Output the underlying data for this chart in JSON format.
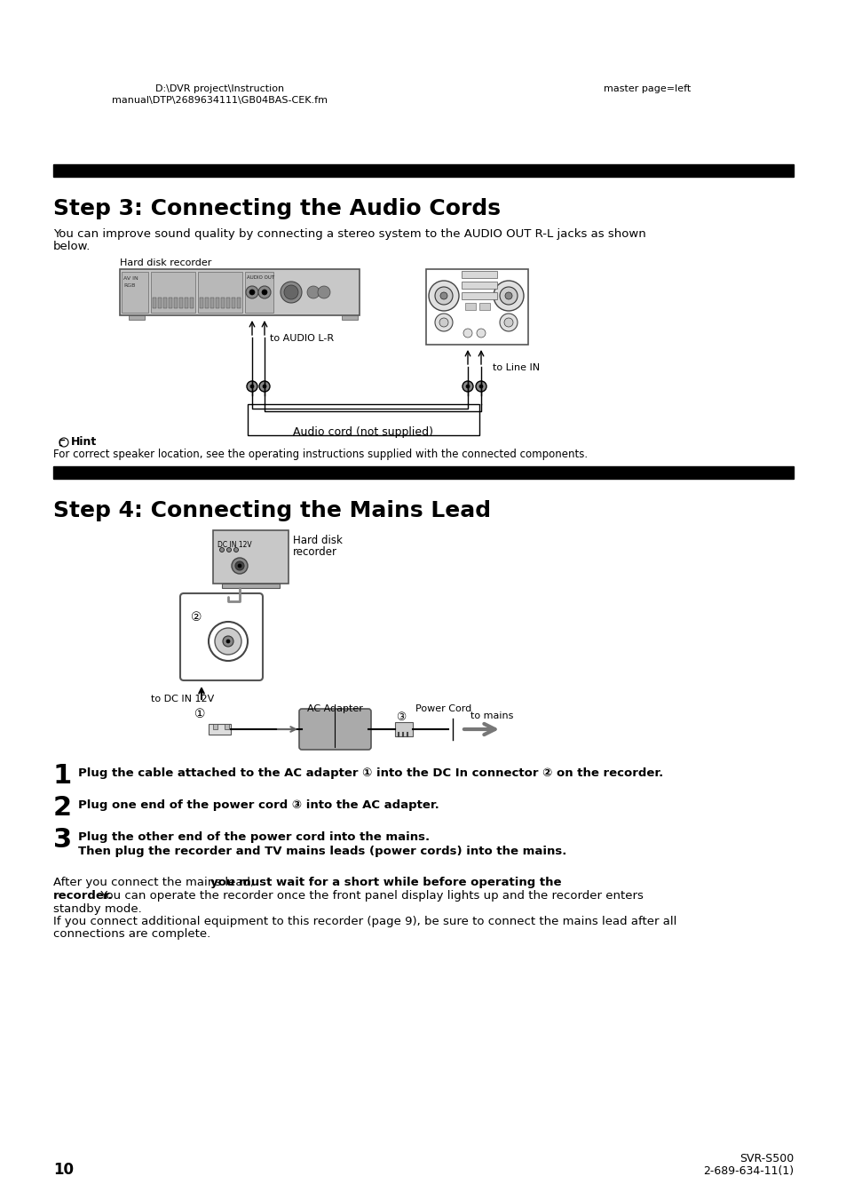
{
  "bg_color": "#ffffff",
  "header_left_line1": "D:\\DVR project\\Instruction",
  "header_left_line2": "manual\\DTP\\2689634111\\GB04BAS-CEK.fm",
  "header_right": "master page=left",
  "step3_title": "Step 3: Connecting the Audio Cords",
  "step3_body_line1": "You can improve sound quality by connecting a stereo system to the AUDIO OUT R-L jacks as shown",
  "step3_body_line2": "below.",
  "hard_disk_recorder": "Hard disk recorder",
  "to_audio_lr": "to AUDIO L-R",
  "to_line_in": "to Line IN",
  "audio_cord_label": "Audio cord (not supplied)",
  "hint_title": "Hint",
  "hint_text": "For correct speaker location, see the operating instructions supplied with the connected components.",
  "step4_title": "Step 4: Connecting the Mains Lead",
  "hard_disk_label1": "Hard disk",
  "hard_disk_label2": "recorder",
  "ac_adapter_label": "AC Adapter",
  "power_cord_label": "Power Cord",
  "to_dc_in_12v": "to DC IN 12V",
  "to_mains": "to mains",
  "item1": "Plug the cable attached to the AC adapter ① into the DC In connector ② on the recorder.",
  "item2": "Plug one end of the power cord ③ into the AC adapter.",
  "item3_line1": "Plug the other end of the power cord into the mains.",
  "item3_line2": "Then plug the recorder and TV mains leads (power cords) into the mains.",
  "after_line1_normal": "After you connect the mains lead, ",
  "after_line1_bold": "you must wait for a short while before operating the",
  "after_line2_bold": "recorder.",
  "after_line2_normal": " You can operate the recorder once the front panel display lights up and the recorder enters",
  "after_line3": "standby mode.",
  "after_line4": "If you connect additional equipment to this recorder (page 9), be sure to connect the mains lead after all",
  "after_line5": "connections are complete.",
  "page_num": "10",
  "footer_right_line1": "SVR-S500",
  "footer_right_line2": "2-689-634-11(1)"
}
